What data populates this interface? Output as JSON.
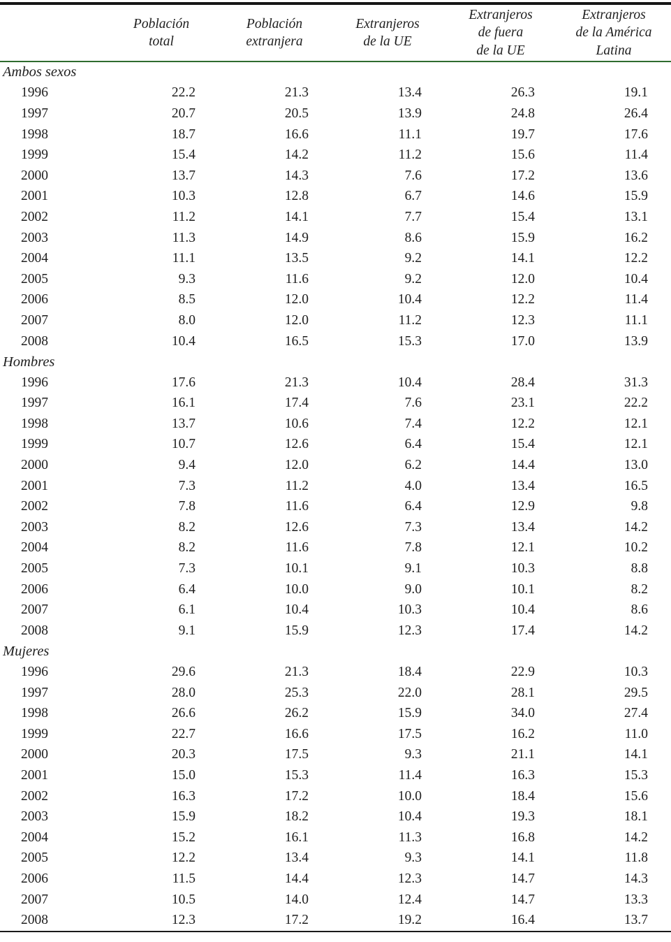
{
  "colors": {
    "top_rule": "#161616",
    "header_rule": "#2e6b2e",
    "bottom_rule": "#1a1a1a",
    "text": "#1f1f1f",
    "background": "#ffffff"
  },
  "table": {
    "header": {
      "columns": [
        "Población\ntotal",
        "Población\nextranjera",
        "Extranjeros\nde la UE",
        "Extranjeros\nde fuera\nde la UE",
        "Extranjeros\nde la América\nLatina"
      ]
    },
    "sections": [
      {
        "label": "Ambos sexos",
        "rows": [
          {
            "year": "1996",
            "values": [
              "22.2",
              "21.3",
              "13.4",
              "26.3",
              "19.1"
            ]
          },
          {
            "year": "1997",
            "values": [
              "20.7",
              "20.5",
              "13.9",
              "24.8",
              "26.4"
            ]
          },
          {
            "year": "1998",
            "values": [
              "18.7",
              "16.6",
              "11.1",
              "19.7",
              "17.6"
            ]
          },
          {
            "year": "1999",
            "values": [
              "15.4",
              "14.2",
              "11.2",
              "15.6",
              "11.4"
            ]
          },
          {
            "year": "2000",
            "values": [
              "13.7",
              "14.3",
              "7.6",
              "17.2",
              "13.6"
            ]
          },
          {
            "year": "2001",
            "values": [
              "10.3",
              "12.8",
              "6.7",
              "14.6",
              "15.9"
            ]
          },
          {
            "year": "2002",
            "values": [
              "11.2",
              "14.1",
              "7.7",
              "15.4",
              "13.1"
            ]
          },
          {
            "year": "2003",
            "values": [
              "11.3",
              "14.9",
              "8.6",
              "15.9",
              "16.2"
            ]
          },
          {
            "year": "2004",
            "values": [
              "11.1",
              "13.5",
              "9.2",
              "14.1",
              "12.2"
            ]
          },
          {
            "year": "2005",
            "values": [
              "9.3",
              "11.6",
              "9.2",
              "12.0",
              "10.4"
            ]
          },
          {
            "year": "2006",
            "values": [
              "8.5",
              "12.0",
              "10.4",
              "12.2",
              "11.4"
            ]
          },
          {
            "year": "2007",
            "values": [
              "8.0",
              "12.0",
              "11.2",
              "12.3",
              "11.1"
            ]
          },
          {
            "year": "2008",
            "values": [
              "10.4",
              "16.5",
              "15.3",
              "17.0",
              "13.9"
            ]
          }
        ]
      },
      {
        "label": "Hombres",
        "rows": [
          {
            "year": "1996",
            "values": [
              "17.6",
              "21.3",
              "10.4",
              "28.4",
              "31.3"
            ]
          },
          {
            "year": "1997",
            "values": [
              "16.1",
              "17.4",
              "7.6",
              "23.1",
              "22.2"
            ]
          },
          {
            "year": "1998",
            "values": [
              "13.7",
              "10.6",
              "7.4",
              "12.2",
              "12.1"
            ]
          },
          {
            "year": "1999",
            "values": [
              "10.7",
              "12.6",
              "6.4",
              "15.4",
              "12.1"
            ]
          },
          {
            "year": "2000",
            "values": [
              "9.4",
              "12.0",
              "6.2",
              "14.4",
              "13.0"
            ]
          },
          {
            "year": "2001",
            "values": [
              "7.3",
              "11.2",
              "4.0",
              "13.4",
              "16.5"
            ]
          },
          {
            "year": "2002",
            "values": [
              "7.8",
              "11.6",
              "6.4",
              "12.9",
              "9.8"
            ]
          },
          {
            "year": "2003",
            "values": [
              "8.2",
              "12.6",
              "7.3",
              "13.4",
              "14.2"
            ]
          },
          {
            "year": "2004",
            "values": [
              "8.2",
              "11.6",
              "7.8",
              "12.1",
              "10.2"
            ]
          },
          {
            "year": "2005",
            "values": [
              "7.3",
              "10.1",
              "9.1",
              "10.3",
              "8.8"
            ]
          },
          {
            "year": "2006",
            "values": [
              "6.4",
              "10.0",
              "9.0",
              "10.1",
              "8.2"
            ]
          },
          {
            "year": "2007",
            "values": [
              "6.1",
              "10.4",
              "10.3",
              "10.4",
              "8.6"
            ]
          },
          {
            "year": "2008",
            "values": [
              "9.1",
              "15.9",
              "12.3",
              "17.4",
              "14.2"
            ]
          }
        ]
      },
      {
        "label": "Mujeres",
        "rows": [
          {
            "year": "1996",
            "values": [
              "29.6",
              "21.3",
              "18.4",
              "22.9",
              "10.3"
            ]
          },
          {
            "year": "1997",
            "values": [
              "28.0",
              "25.3",
              "22.0",
              "28.1",
              "29.5"
            ]
          },
          {
            "year": "1998",
            "values": [
              "26.6",
              "26.2",
              "15.9",
              "34.0",
              "27.4"
            ]
          },
          {
            "year": "1999",
            "values": [
              "22.7",
              "16.6",
              "17.5",
              "16.2",
              "11.0"
            ]
          },
          {
            "year": "2000",
            "values": [
              "20.3",
              "17.5",
              "9.3",
              "21.1",
              "14.1"
            ]
          },
          {
            "year": "2001",
            "values": [
              "15.0",
              "15.3",
              "11.4",
              "16.3",
              "15.3"
            ]
          },
          {
            "year": "2002",
            "values": [
              "16.3",
              "17.2",
              "10.0",
              "18.4",
              "15.6"
            ]
          },
          {
            "year": "2003",
            "values": [
              "15.9",
              "18.2",
              "10.4",
              "19.3",
              "18.1"
            ]
          },
          {
            "year": "2004",
            "values": [
              "15.2",
              "16.1",
              "11.3",
              "16.8",
              "14.2"
            ]
          },
          {
            "year": "2005",
            "values": [
              "12.2",
              "13.4",
              "9.3",
              "14.1",
              "11.8"
            ]
          },
          {
            "year": "2006",
            "values": [
              "11.5",
              "14.4",
              "12.3",
              "14.7",
              "14.3"
            ]
          },
          {
            "year": "2007",
            "values": [
              "10.5",
              "14.0",
              "12.4",
              "14.7",
              "13.3"
            ]
          },
          {
            "year": "2008",
            "values": [
              "12.3",
              "17.2",
              "19.2",
              "16.4",
              "13.7"
            ]
          }
        ]
      }
    ]
  }
}
